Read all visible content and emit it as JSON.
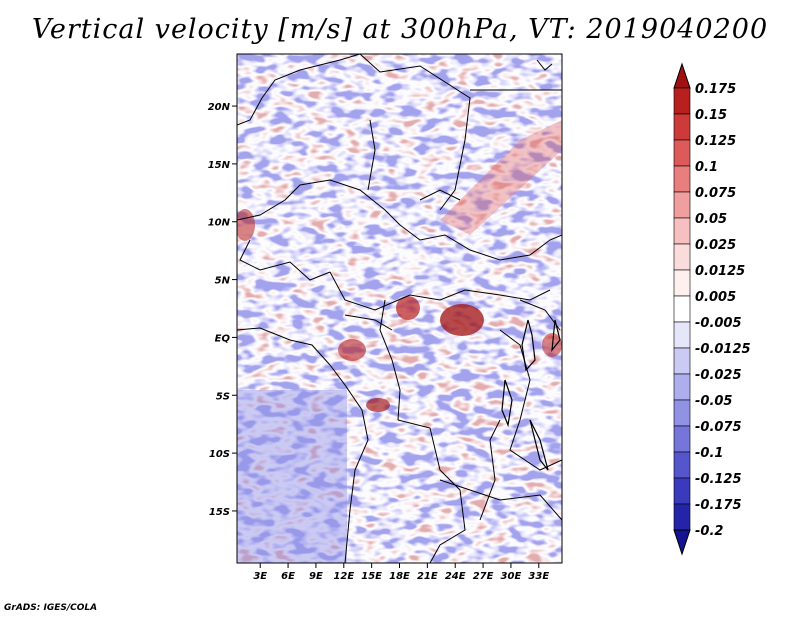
{
  "title": "Vertical velocity [m/s] at 300hPa, VT: 2019040200",
  "credit": "GrADS: IGES/COLA",
  "map": {
    "lon_labels": [
      "3E",
      "6E",
      "9E",
      "12E",
      "15E",
      "18E",
      "21E",
      "24E",
      "27E",
      "30E",
      "33E"
    ],
    "lon_values": [
      3,
      6,
      9,
      12,
      15,
      18,
      21,
      24,
      27,
      30,
      33
    ],
    "lat_labels": [
      "20N",
      "15N",
      "10N",
      "5N",
      "EQ",
      "5S",
      "10S",
      "15S"
    ],
    "lat_values": [
      20,
      15,
      10,
      5,
      0,
      -5,
      -10,
      -15
    ],
    "lon_range": [
      0.5,
      35.5
    ],
    "lat_range": [
      -19.5,
      24.5
    ]
  },
  "colorbar": {
    "labels": [
      "0.175",
      "0.15",
      "0.125",
      "0.1",
      "0.075",
      "0.05",
      "0.025",
      "0.0125",
      "0.005",
      "-0.005",
      "-0.0125",
      "-0.025",
      "-0.05",
      "-0.075",
      "-0.1",
      "-0.125",
      "-0.175",
      "-0.2"
    ],
    "colors": [
      "#a01010",
      "#b82020",
      "#cc3a3a",
      "#dd5a5a",
      "#e87e7e",
      "#f19e9e",
      "#f7c0c0",
      "#fbdcdc",
      "#fff0f0",
      "#ffffff",
      "#e6e6fb",
      "#cacaf4",
      "#aeaeed",
      "#9292e4",
      "#7676da",
      "#5656cc",
      "#3a3abc",
      "#2424a8",
      "#141490"
    ]
  }
}
